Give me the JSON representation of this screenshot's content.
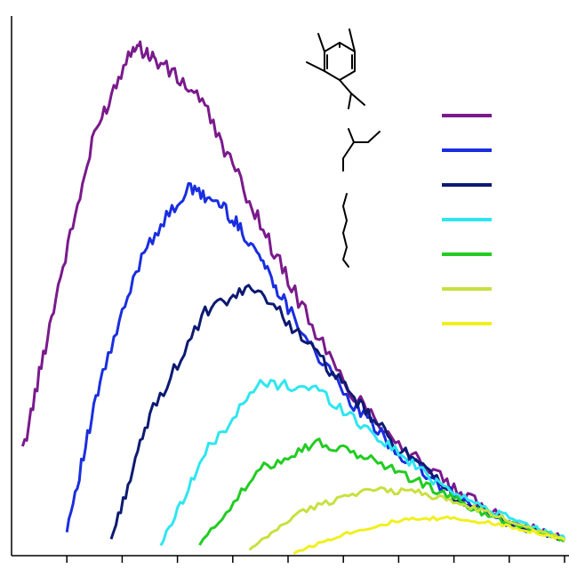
{
  "chart_data": {
    "type": "line",
    "title": "",
    "xlabel": "",
    "ylabel": "",
    "xlim": [
      0,
      10
    ],
    "ylim": [
      0,
      10
    ],
    "x_ticks": [
      1,
      2,
      3,
      4,
      5,
      6,
      7,
      8,
      9,
      10
    ],
    "grid": false,
    "legend_position": "top-right",
    "series": [
      {
        "color": "#7a1a8c",
        "x": [
          0.2,
          0.8,
          1.5,
          2.2,
          2.6,
          3.4,
          4.2,
          5.0,
          6.0,
          7.0,
          8.0,
          9.0,
          10.0
        ],
        "y": [
          1.9,
          4.8,
          7.8,
          9.5,
          9.2,
          8.5,
          6.8,
          5.1,
          3.2,
          2.1,
          1.2,
          0.65,
          0.3
        ]
      },
      {
        "color": "#1a2ee0",
        "x": [
          1.0,
          1.6,
          2.4,
          3.2,
          3.8,
          4.4,
          5.0,
          6.0,
          7.0,
          8.0,
          9.0,
          10.0
        ],
        "y": [
          0.5,
          3.2,
          5.7,
          6.8,
          6.5,
          5.7,
          4.6,
          3.0,
          1.9,
          1.1,
          0.6,
          0.3
        ]
      },
      {
        "color": "#0d1a72",
        "x": [
          1.8,
          2.5,
          3.5,
          4.4,
          5.3,
          6.2,
          7.0,
          8.0,
          9.0,
          10.0
        ],
        "y": [
          0.3,
          2.6,
          4.5,
          5.0,
          4.0,
          2.9,
          2.0,
          1.1,
          0.6,
          0.3
        ]
      },
      {
        "color": "#2ee6f0",
        "x": [
          2.7,
          3.5,
          4.5,
          5.5,
          6.5,
          7.5,
          8.5,
          9.5,
          10.0
        ],
        "y": [
          0.2,
          1.9,
          3.2,
          3.1,
          2.3,
          1.5,
          0.9,
          0.5,
          0.35
        ]
      },
      {
        "color": "#22cc22",
        "x": [
          3.4,
          4.5,
          5.5,
          6.5,
          7.5,
          8.5,
          9.5,
          10.0
        ],
        "y": [
          0.2,
          1.6,
          2.1,
          1.8,
          1.3,
          0.8,
          0.45,
          0.3
        ]
      },
      {
        "color": "#c8e040",
        "x": [
          4.3,
          5.2,
          6.3,
          7.3,
          8.3,
          9.3,
          10.0
        ],
        "y": [
          0.1,
          0.8,
          1.2,
          1.2,
          0.9,
          0.55,
          0.3
        ]
      },
      {
        "color": "#f0f020",
        "x": [
          5.1,
          6.0,
          7.0,
          8.0,
          9.0,
          10.0
        ],
        "y": [
          0.05,
          0.4,
          0.65,
          0.7,
          0.55,
          0.3
        ]
      }
    ]
  }
}
